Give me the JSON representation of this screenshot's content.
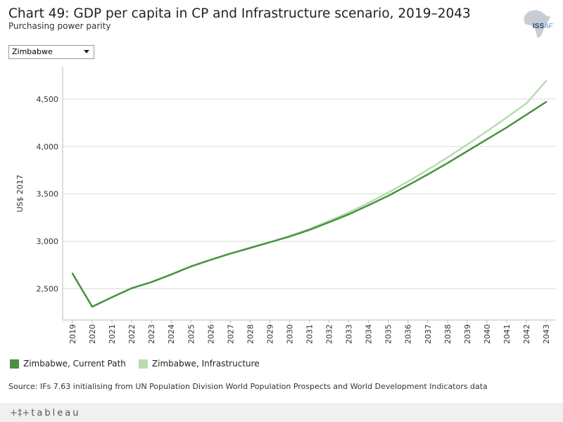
{
  "header": {
    "title": "Chart 49: GDP per capita in CP and Infrastructure scenario, 2019–2043",
    "subtitle": "Purchasing power parity"
  },
  "logo": {
    "part1": "ISS",
    "part2": "AF"
  },
  "filter": {
    "selected": "Zimbabwe"
  },
  "colors": {
    "current_path": "#4a9142",
    "infrastructure": "#b8dcb0"
  },
  "chart_data": {
    "type": "line",
    "title": "Chart 49: GDP per capita in CP and Infrastructure scenario, 2019–2043",
    "subtitle": "Purchasing power parity",
    "xlabel": "",
    "ylabel": "US$ 2017",
    "ylim": [
      2170,
      4840
    ],
    "yticks": [
      2500,
      3000,
      3500,
      4000,
      4500
    ],
    "ytick_labels": [
      "2,500",
      "3,000",
      "3,500",
      "4,000",
      "4,500"
    ],
    "categories": [
      "2019",
      "2020",
      "2021",
      "2022",
      "2023",
      "2024",
      "2025",
      "2026",
      "2027",
      "2028",
      "2029",
      "2030",
      "2031",
      "2032",
      "2033",
      "2034",
      "2035",
      "2036",
      "2037",
      "2038",
      "2039",
      "2040",
      "2041",
      "2042",
      "2043"
    ],
    "series": [
      {
        "name": "Zimbabwe, Current Path",
        "values": [
          2660,
          2310,
          2410,
          2505,
          2570,
          2650,
          2735,
          2805,
          2870,
          2930,
          2990,
          3050,
          3120,
          3200,
          3285,
          3380,
          3480,
          3590,
          3705,
          3825,
          3950,
          4075,
          4200,
          4335,
          4470
        ]
      },
      {
        "name": "Zimbabwe, Infrastructure",
        "values": [
          2660,
          2310,
          2410,
          2505,
          2570,
          2650,
          2735,
          2805,
          2870,
          2930,
          2990,
          3055,
          3130,
          3215,
          3305,
          3405,
          3515,
          3630,
          3755,
          3885,
          4020,
          4160,
          4305,
          4455,
          4690
        ]
      }
    ],
    "grid": true,
    "legend": "bottom-left"
  },
  "source": "Source: IFs 7.63 initialising from UN Population Division World Population Prospects and World Development Indicators data",
  "footer": {
    "brand": "tableau"
  }
}
